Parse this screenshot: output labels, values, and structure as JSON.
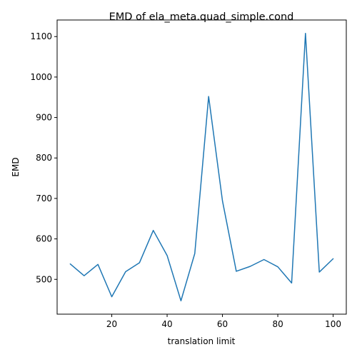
{
  "chart_data": {
    "type": "line",
    "title": "EMD of ela_meta.quad_simple.cond",
    "xlabel": "translation limit",
    "ylabel": "EMD",
    "xlim": [
      0.25,
      104.75
    ],
    "ylim": [
      414,
      1141
    ],
    "xticks": [
      20,
      40,
      60,
      80,
      100
    ],
    "yticks": [
      500,
      600,
      700,
      800,
      900,
      1000,
      1100
    ],
    "grid": false,
    "legend": "none",
    "series": [
      {
        "color": "#1f77b4",
        "x": [
          5,
          10,
          15,
          20,
          25,
          30,
          35,
          40,
          45,
          50,
          55,
          60,
          65,
          70,
          75,
          80,
          85,
          90,
          95,
          100
        ],
        "y": [
          538,
          509,
          537,
          457,
          519,
          541,
          621,
          559,
          447,
          564,
          952,
          694,
          520,
          532,
          549,
          531,
          491,
          1108,
          518,
          551
        ]
      }
    ]
  }
}
